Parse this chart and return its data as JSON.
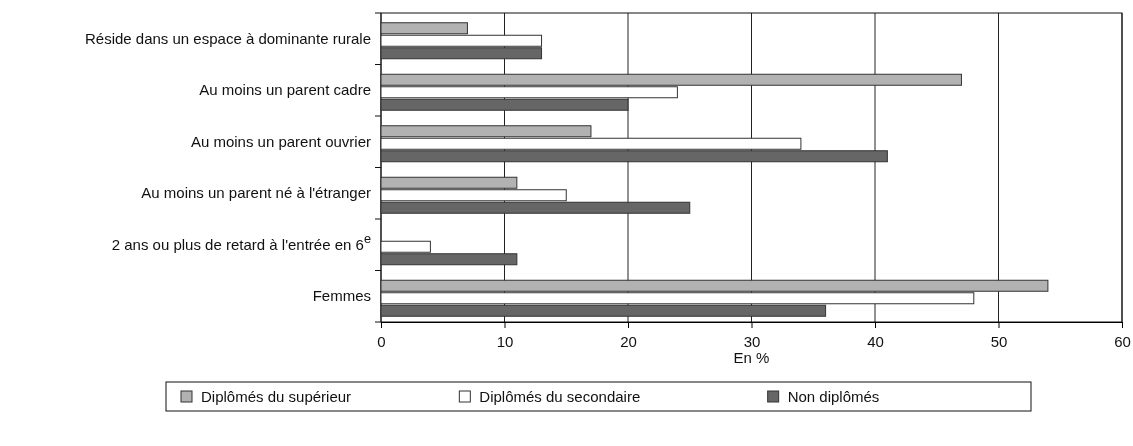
{
  "chart_data": {
    "type": "bar",
    "orientation": "horizontal",
    "xlabel": "En %",
    "categories": [
      "Réside dans un espace à dominante rurale",
      "Au moins un parent cadre",
      "Au moins un parent ouvrier",
      "Au moins un parent né à l'étranger",
      "2 ans ou plus de retard à l'entrée en 6$^{e}$",
      "Femmes"
    ],
    "series": [
      {
        "name": "Diplômés du supérieur",
        "color": "#b2b2b2",
        "values": [
          7,
          47,
          17,
          11,
          null,
          54
        ]
      },
      {
        "name": "Diplômés du secondaire",
        "color": "#ffffff",
        "values": [
          13,
          24,
          34,
          15,
          4,
          48
        ]
      },
      {
        "name": "Non diplômés",
        "color": "#666666",
        "values": [
          13,
          20,
          41,
          25,
          11,
          36
        ]
      }
    ],
    "xlim": [
      0,
      60
    ],
    "xticks": [
      0,
      10,
      20,
      30,
      40,
      50,
      60
    ],
    "grid": "x",
    "legend": "bottom"
  }
}
